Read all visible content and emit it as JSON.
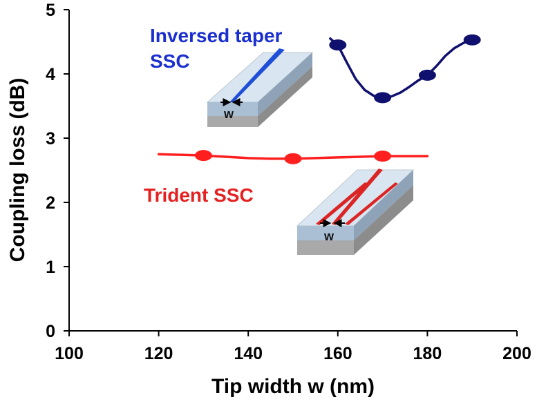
{
  "chart_data": {
    "type": "line",
    "xlabel": "Tip width w (nm)",
    "ylabel": "Coupling loss (dB)",
    "xlim": [
      100,
      200
    ],
    "ylim": [
      0,
      5
    ],
    "x_ticks": [
      "100",
      "120",
      "140",
      "160",
      "180",
      "200"
    ],
    "y_ticks": [
      "0",
      "1",
      "2",
      "3",
      "4",
      "5"
    ],
    "grid": false,
    "series": [
      {
        "name": "Inversed taper SSC",
        "color": "#10106e",
        "points": [
          {
            "x": 160,
            "y": 4.45
          },
          {
            "x": 170,
            "y": 3.63
          },
          {
            "x": 180,
            "y": 3.98
          },
          {
            "x": 190,
            "y": 4.53
          }
        ],
        "curve": [
          [
            158.3,
            4.55
          ],
          [
            160,
            4.45
          ],
          [
            162,
            4.18
          ],
          [
            164,
            3.92
          ],
          [
            166,
            3.75
          ],
          [
            168,
            3.66
          ],
          [
            170,
            3.63
          ],
          [
            172,
            3.65
          ],
          [
            174,
            3.71
          ],
          [
            176,
            3.8
          ],
          [
            178,
            3.9
          ],
          [
            180,
            3.98
          ],
          [
            182,
            4.12
          ],
          [
            184,
            4.28
          ],
          [
            186,
            4.4
          ],
          [
            188,
            4.48
          ],
          [
            190,
            4.53
          ],
          [
            191.3,
            4.56
          ]
        ]
      },
      {
        "name": "Trident SSC",
        "color": "#ff1f1f",
        "points": [
          {
            "x": 130,
            "y": 2.73
          },
          {
            "x": 150,
            "y": 2.68
          },
          {
            "x": 170,
            "y": 2.72
          }
        ],
        "curve": [
          [
            120,
            2.75
          ],
          [
            125,
            2.74
          ],
          [
            130,
            2.73
          ],
          [
            135,
            2.71
          ],
          [
            140,
            2.69
          ],
          [
            145,
            2.68
          ],
          [
            150,
            2.68
          ],
          [
            155,
            2.69
          ],
          [
            160,
            2.7
          ],
          [
            165,
            2.71
          ],
          [
            170,
            2.72
          ],
          [
            175,
            2.72
          ],
          [
            180,
            2.72
          ]
        ]
      }
    ],
    "annotations": {
      "inversed_taper_line1": "Inversed taper",
      "inversed_taper_line2": "SSC",
      "trident": "Trident SSC",
      "inset_w_blue": "w",
      "inset_w_red": "w"
    }
  }
}
